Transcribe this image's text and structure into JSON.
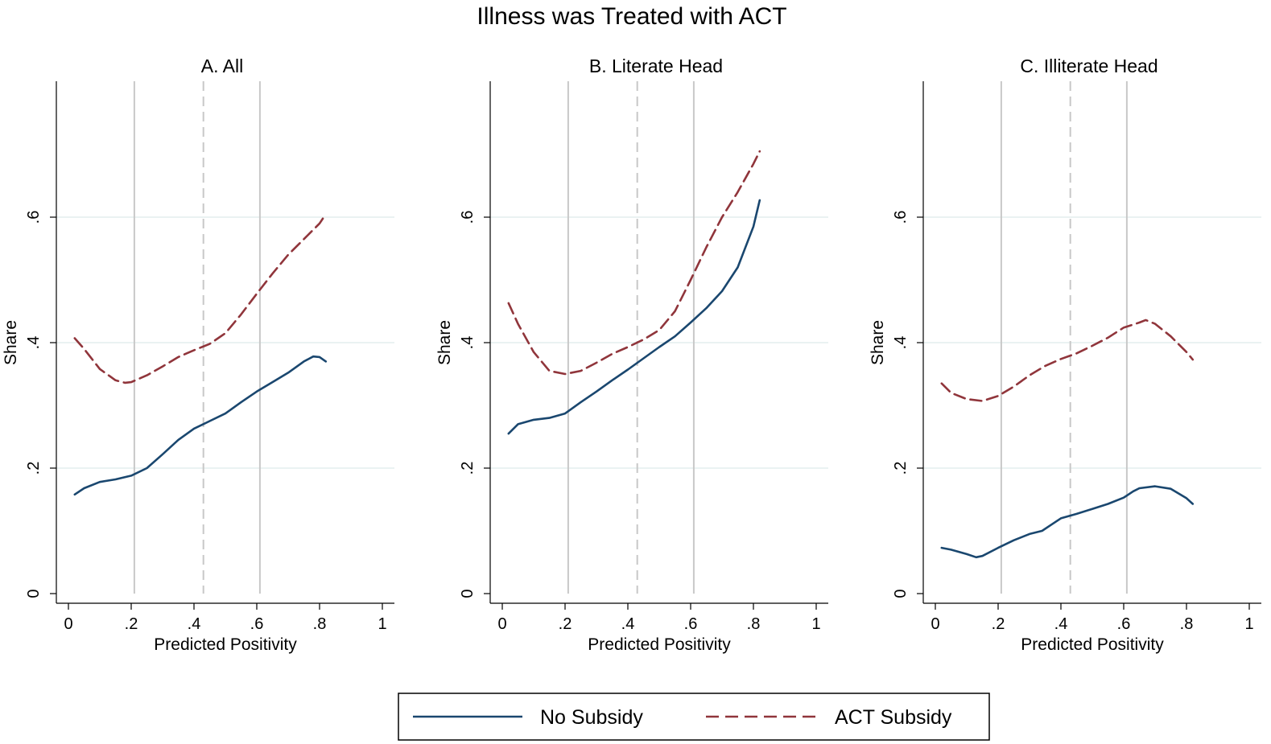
{
  "figure": {
    "title": "Illness was Treated with ACT",
    "legend": {
      "position": "bottom",
      "entries": [
        {
          "label": "No Subsidy",
          "color": "#1a476f",
          "style": "solid"
        },
        {
          "label": "ACT Subsidy",
          "color": "#90353b",
          "style": "dashed"
        }
      ]
    }
  },
  "chart_data": [
    {
      "type": "line",
      "title": "A. All",
      "xlabel": "Predicted Positivity",
      "ylabel": "Share",
      "xlim": [
        0,
        1
      ],
      "ylim": [
        0,
        0.7
      ],
      "x_ticks": [
        0,
        0.2,
        0.4,
        0.6,
        0.8,
        1
      ],
      "x_tick_labels": [
        "0",
        ".2",
        ".4",
        ".6",
        ".8",
        "1"
      ],
      "y_ticks": [
        0,
        0.2,
        0.4,
        0.6
      ],
      "y_tick_labels": [
        "0",
        ".2",
        ".4",
        ".6"
      ],
      "grid": "horizontal",
      "reference_lines": [
        {
          "x": 0.21,
          "style": "solid"
        },
        {
          "x": 0.43,
          "style": "dashed"
        },
        {
          "x": 0.61,
          "style": "solid"
        }
      ],
      "series": [
        {
          "name": "No Subsidy",
          "color": "#1a476f",
          "style": "solid",
          "x": [
            0.02,
            0.05,
            0.1,
            0.15,
            0.2,
            0.25,
            0.3,
            0.35,
            0.4,
            0.45,
            0.5,
            0.55,
            0.6,
            0.65,
            0.7,
            0.75,
            0.78,
            0.8,
            0.82
          ],
          "y": [
            0.158,
            0.168,
            0.178,
            0.182,
            0.188,
            0.2,
            0.222,
            0.245,
            0.263,
            0.275,
            0.287,
            0.305,
            0.322,
            0.337,
            0.352,
            0.37,
            0.378,
            0.377,
            0.37
          ]
        },
        {
          "name": "ACT Subsidy",
          "color": "#90353b",
          "style": "dashed",
          "x": [
            0.02,
            0.05,
            0.1,
            0.15,
            0.18,
            0.2,
            0.25,
            0.3,
            0.35,
            0.4,
            0.45,
            0.5,
            0.55,
            0.6,
            0.65,
            0.7,
            0.75,
            0.8,
            0.82
          ],
          "y": [
            0.407,
            0.39,
            0.358,
            0.34,
            0.336,
            0.337,
            0.348,
            0.362,
            0.377,
            0.388,
            0.398,
            0.415,
            0.445,
            0.478,
            0.51,
            0.54,
            0.565,
            0.59,
            0.605
          ]
        }
      ]
    },
    {
      "type": "line",
      "title": "B. Literate Head",
      "xlabel": "Predicted Positivity",
      "ylabel": "Share",
      "xlim": [
        0,
        1
      ],
      "ylim": [
        0,
        0.7
      ],
      "x_ticks": [
        0,
        0.2,
        0.4,
        0.6,
        0.8,
        1
      ],
      "x_tick_labels": [
        "0",
        ".2",
        ".4",
        ".6",
        ".8",
        "1"
      ],
      "y_ticks": [
        0,
        0.2,
        0.4,
        0.6
      ],
      "y_tick_labels": [
        "0",
        ".2",
        ".4",
        ".6"
      ],
      "grid": "horizontal",
      "reference_lines": [
        {
          "x": 0.21,
          "style": "solid"
        },
        {
          "x": 0.43,
          "style": "dashed"
        },
        {
          "x": 0.61,
          "style": "solid"
        }
      ],
      "series": [
        {
          "name": "No Subsidy",
          "color": "#1a476f",
          "style": "solid",
          "x": [
            0.02,
            0.05,
            0.1,
            0.15,
            0.2,
            0.25,
            0.3,
            0.35,
            0.4,
            0.45,
            0.5,
            0.55,
            0.6,
            0.65,
            0.7,
            0.75,
            0.8,
            0.82
          ],
          "y": [
            0.255,
            0.27,
            0.277,
            0.28,
            0.287,
            0.305,
            0.322,
            0.34,
            0.357,
            0.375,
            0.393,
            0.41,
            0.432,
            0.455,
            0.482,
            0.52,
            0.585,
            0.627
          ]
        },
        {
          "name": "ACT Subsidy",
          "color": "#90353b",
          "style": "dashed",
          "x": [
            0.02,
            0.05,
            0.1,
            0.15,
            0.2,
            0.25,
            0.3,
            0.35,
            0.4,
            0.45,
            0.5,
            0.55,
            0.6,
            0.65,
            0.7,
            0.75,
            0.8,
            0.82
          ],
          "y": [
            0.463,
            0.43,
            0.385,
            0.355,
            0.35,
            0.355,
            0.368,
            0.382,
            0.393,
            0.405,
            0.42,
            0.45,
            0.5,
            0.552,
            0.6,
            0.64,
            0.685,
            0.705
          ]
        }
      ]
    },
    {
      "type": "line",
      "title": "C. Illiterate Head",
      "xlabel": "Predicted Positivity",
      "ylabel": "Share",
      "xlim": [
        0,
        1
      ],
      "ylim": [
        0,
        0.7
      ],
      "x_ticks": [
        0,
        0.2,
        0.4,
        0.6,
        0.8,
        1
      ],
      "x_tick_labels": [
        "0",
        ".2",
        ".4",
        ".6",
        ".8",
        "1"
      ],
      "y_ticks": [
        0,
        0.2,
        0.4,
        0.6
      ],
      "y_tick_labels": [
        "0",
        ".2",
        ".4",
        ".6"
      ],
      "grid": "horizontal",
      "reference_lines": [
        {
          "x": 0.21,
          "style": "solid"
        },
        {
          "x": 0.43,
          "style": "dashed"
        },
        {
          "x": 0.61,
          "style": "solid"
        }
      ],
      "series": [
        {
          "name": "No Subsidy",
          "color": "#1a476f",
          "style": "solid",
          "x": [
            0.02,
            0.05,
            0.1,
            0.13,
            0.15,
            0.2,
            0.25,
            0.3,
            0.34,
            0.37,
            0.4,
            0.45,
            0.5,
            0.55,
            0.6,
            0.63,
            0.65,
            0.7,
            0.75,
            0.8,
            0.82
          ],
          "y": [
            0.073,
            0.07,
            0.063,
            0.058,
            0.06,
            0.073,
            0.085,
            0.095,
            0.1,
            0.11,
            0.12,
            0.127,
            0.135,
            0.143,
            0.153,
            0.163,
            0.168,
            0.171,
            0.167,
            0.152,
            0.143
          ]
        },
        {
          "name": "ACT Subsidy",
          "color": "#90353b",
          "style": "dashed",
          "x": [
            0.02,
            0.05,
            0.1,
            0.15,
            0.2,
            0.25,
            0.3,
            0.35,
            0.4,
            0.45,
            0.5,
            0.55,
            0.6,
            0.65,
            0.67,
            0.7,
            0.75,
            0.8,
            0.82
          ],
          "y": [
            0.335,
            0.32,
            0.31,
            0.307,
            0.315,
            0.33,
            0.348,
            0.363,
            0.374,
            0.383,
            0.395,
            0.408,
            0.424,
            0.432,
            0.436,
            0.43,
            0.41,
            0.385,
            0.373
          ]
        }
      ]
    }
  ]
}
